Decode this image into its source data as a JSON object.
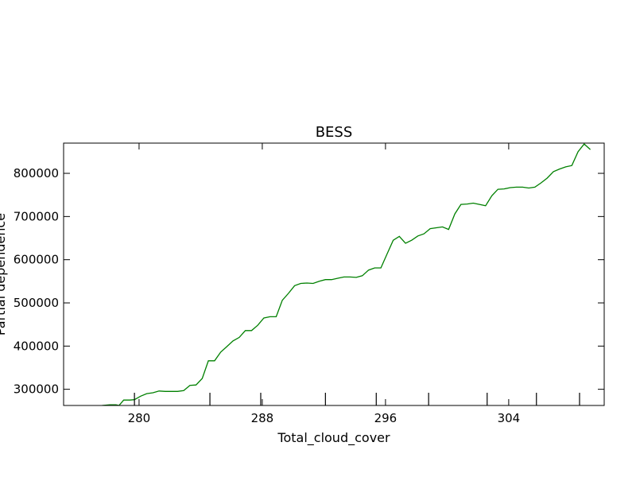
{
  "chart_data": {
    "type": "line",
    "title": "BESS",
    "xlabel": "Total_cloud_cover",
    "ylabel": "Partial dependence",
    "xlim": [
      275.1,
      310.2
    ],
    "ylim": [
      262500,
      870000
    ],
    "grid": false,
    "x_ticks": [
      280,
      288,
      296,
      304
    ],
    "x_minor_ticks": [
      279.7,
      284.6,
      287.9,
      292.1,
      295.4,
      298.8,
      302.6,
      305.8,
      308.6
    ],
    "y_ticks": [
      300000,
      400000,
      500000,
      600000,
      700000,
      800000
    ],
    "x_tick_labels": [
      "280",
      "288",
      "296",
      "304"
    ],
    "y_tick_labels": [
      "300000",
      "400000",
      "500000",
      "600000",
      "700000",
      "800000"
    ],
    "series": [
      {
        "color": "#008000",
        "x": [
          277.6,
          278.1,
          278.5,
          278.7,
          279.0,
          279.4,
          279.7,
          280.1,
          280.5,
          280.9,
          281.3,
          281.7,
          282.1,
          282.5,
          282.9,
          283.3,
          283.7,
          284.1,
          284.5,
          284.9,
          285.3,
          285.7,
          286.1,
          286.5,
          286.9,
          287.3,
          287.7,
          288.1,
          288.5,
          288.9,
          289.3,
          289.7,
          290.1,
          290.5,
          290.9,
          291.3,
          291.7,
          292.1,
          292.5,
          292.9,
          293.3,
          293.7,
          294.1,
          294.5,
          294.9,
          295.3,
          295.7,
          296.1,
          296.5,
          296.9,
          297.3,
          297.7,
          298.1,
          298.5,
          298.9,
          299.3,
          299.7,
          300.1,
          300.5,
          300.9,
          301.3,
          301.7,
          302.1,
          302.5,
          302.9,
          303.3,
          303.7,
          304.1,
          304.5,
          304.9,
          305.3,
          305.7,
          306.1,
          306.5,
          306.9,
          307.3,
          307.7,
          308.1,
          308.5,
          308.9,
          309.3
        ],
        "y": [
          262500,
          264000,
          264000,
          262500,
          275000,
          275000,
          276000,
          284000,
          290000,
          292000,
          296000,
          295000,
          295000,
          295000,
          297000,
          309000,
          310000,
          325000,
          366000,
          366000,
          386000,
          399000,
          412000,
          420000,
          436000,
          436000,
          448000,
          465000,
          468000,
          468000,
          506000,
          522000,
          540000,
          545000,
          546000,
          545000,
          550000,
          554000,
          554000,
          557000,
          560000,
          560000,
          559000,
          563000,
          576000,
          581000,
          581000,
          613000,
          645000,
          654000,
          638000,
          645000,
          655000,
          660000,
          672000,
          674000,
          676000,
          670000,
          706000,
          728000,
          729000,
          731000,
          728000,
          725000,
          748000,
          763000,
          764000,
          767000,
          768000,
          768000,
          766000,
          768000,
          778000,
          789000,
          804000,
          810000,
          815000,
          818000,
          850000,
          868000,
          855000
        ]
      }
    ]
  }
}
